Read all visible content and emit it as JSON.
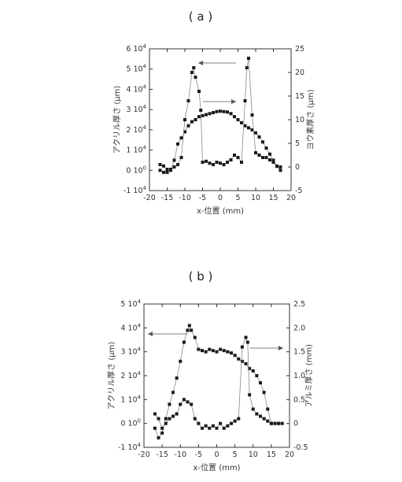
{
  "chart_data": [
    {
      "type": "scatter",
      "panel_label": "( a )",
      "xlabel": "x-位置 (mm)",
      "ylabel_left": "アクリル厚さ (μm)",
      "ylabel_right": "ヨウ素厚さ (μm)",
      "xlim": [
        -20,
        20
      ],
      "ylim_left": [
        -10000,
        60000
      ],
      "ylim_right": [
        -5,
        25
      ],
      "x_ticks": [
        "-20",
        "-15",
        "-10",
        "-5",
        "0",
        "5",
        "10",
        "15",
        "20"
      ],
      "y_left_ticks": [
        {
          "mant": "-1",
          "exp": "4"
        },
        {
          "mant": "0",
          "exp": "0"
        },
        {
          "mant": "1",
          "exp": "4"
        },
        {
          "mant": "2",
          "exp": "4"
        },
        {
          "mant": "3",
          "exp": "4"
        },
        {
          "mant": "4",
          "exp": "4"
        },
        {
          "mant": "5",
          "exp": "4"
        },
        {
          "mant": "6",
          "exp": "4"
        }
      ],
      "y_right_ticks": [
        "-5",
        "0",
        "5",
        "10",
        "15",
        "20",
        "25"
      ],
      "series": [
        {
          "axis": "left",
          "points": [
            [
              -17,
              0
            ],
            [
              -16,
              -1000
            ],
            [
              -15,
              -1000
            ],
            [
              -14,
              0
            ],
            [
              -13,
              5000
            ],
            [
              -12,
              13000
            ],
            [
              -11,
              16000
            ],
            [
              -10,
              19000
            ],
            [
              -9,
              22000
            ],
            [
              -8,
              24000
            ],
            [
              -7,
              25000
            ],
            [
              -6,
              26500
            ],
            [
              -5,
              27000
            ],
            [
              -4,
              27500
            ],
            [
              -3,
              28000
            ],
            [
              -2,
              28500
            ],
            [
              -1,
              29000
            ],
            [
              0,
              29200
            ],
            [
              1,
              29000
            ],
            [
              2,
              28800
            ],
            [
              3,
              28000
            ],
            [
              4,
              26500
            ],
            [
              5,
              25000
            ],
            [
              6,
              23500
            ],
            [
              7,
              22000
            ],
            [
              8,
              21000
            ],
            [
              9,
              20000
            ],
            [
              10,
              18500
            ],
            [
              11,
              16500
            ],
            [
              12,
              14000
            ],
            [
              13,
              11000
            ],
            [
              14,
              8000
            ],
            [
              15,
              5000
            ],
            [
              16,
              2000
            ],
            [
              17,
              0
            ]
          ]
        },
        {
          "axis": "right",
          "points": [
            [
              -17,
              0.5
            ],
            [
              -16,
              0.2
            ],
            [
              -15,
              -0.5
            ],
            [
              -14,
              -0.5
            ],
            [
              -13,
              0
            ],
            [
              -12,
              0.5
            ],
            [
              -11,
              2
            ],
            [
              -10,
              10
            ],
            [
              -9,
              14
            ],
            [
              -8,
              20
            ],
            [
              -7.5,
              21
            ],
            [
              -7,
              19
            ],
            [
              -6,
              16
            ],
            [
              -5.5,
              12
            ],
            [
              -5,
              1
            ],
            [
              -4,
              1.2
            ],
            [
              -3,
              0.8
            ],
            [
              -2,
              0.5
            ],
            [
              -1,
              1
            ],
            [
              0,
              0.8
            ],
            [
              1,
              0.5
            ],
            [
              2,
              1
            ],
            [
              3,
              1.5
            ],
            [
              4,
              2.5
            ],
            [
              5,
              2
            ],
            [
              6,
              1
            ],
            [
              7,
              14
            ],
            [
              7.5,
              21
            ],
            [
              8,
              23
            ],
            [
              9,
              11
            ],
            [
              10,
              3
            ],
            [
              11,
              2.5
            ],
            [
              12,
              2
            ],
            [
              13,
              2
            ],
            [
              14,
              1.5
            ],
            [
              15,
              1
            ],
            [
              16,
              0.2
            ],
            [
              17,
              0
            ]
          ]
        }
      ],
      "arrows": [
        "left",
        "right"
      ]
    },
    {
      "type": "scatter",
      "panel_label": "( b )",
      "xlabel": "x-位置 (mm)",
      "ylabel_left": "アクリル厚さ (μm)",
      "ylabel_right": "アルミ厚さ (mm)",
      "xlim": [
        -20,
        20
      ],
      "ylim_left": [
        -10000,
        50000
      ],
      "ylim_right": [
        -0.5,
        2.5
      ],
      "x_ticks": [
        "-20",
        "-15",
        "-10",
        "-5",
        "0",
        "5",
        "10",
        "15",
        "20"
      ],
      "y_left_ticks": [
        {
          "mant": "-1",
          "exp": "4"
        },
        {
          "mant": "0",
          "exp": "0"
        },
        {
          "mant": "1",
          "exp": "4"
        },
        {
          "mant": "2",
          "exp": "4"
        },
        {
          "mant": "3",
          "exp": "4"
        },
        {
          "mant": "4",
          "exp": "4"
        },
        {
          "mant": "5",
          "exp": "4"
        }
      ],
      "y_right_ticks": [
        "-0.5",
        "0",
        "0.5",
        "1.0",
        "1.5",
        "2.0",
        "2.5"
      ],
      "series": [
        {
          "axis": "left",
          "points": [
            [
              -17,
              -2000
            ],
            [
              -16,
              -6000
            ],
            [
              -15,
              -4000
            ],
            [
              -14,
              2000
            ],
            [
              -13,
              8000
            ],
            [
              -12,
              13000
            ],
            [
              -11,
              19000
            ],
            [
              -10,
              26000
            ],
            [
              -9,
              34000
            ],
            [
              -8,
              39000
            ],
            [
              -7.5,
              41000
            ],
            [
              -7,
              39000
            ],
            [
              -6,
              36000
            ],
            [
              -5,
              31000
            ],
            [
              -4,
              30500
            ],
            [
              -3,
              30000
            ],
            [
              -2,
              31000
            ],
            [
              -1,
              30500
            ],
            [
              0,
              30000
            ],
            [
              1,
              31000
            ],
            [
              2,
              30500
            ],
            [
              3,
              30000
            ],
            [
              4,
              29500
            ],
            [
              5,
              28500
            ],
            [
              6,
              27000
            ],
            [
              7,
              26000
            ],
            [
              8,
              25000
            ],
            [
              9,
              23000
            ],
            [
              10,
              22000
            ],
            [
              11,
              20000
            ],
            [
              12,
              17000
            ],
            [
              13,
              13000
            ],
            [
              14,
              6000
            ],
            [
              15,
              0
            ],
            [
              16,
              0
            ],
            [
              17,
              0
            ],
            [
              18,
              0
            ]
          ]
        },
        {
          "axis": "right",
          "points": [
            [
              -17,
              0.2
            ],
            [
              -16,
              0.1
            ],
            [
              -15,
              -0.1
            ],
            [
              -14,
              0
            ],
            [
              -13,
              0.1
            ],
            [
              -12,
              0.15
            ],
            [
              -11,
              0.2
            ],
            [
              -10,
              0.4
            ],
            [
              -9,
              0.5
            ],
            [
              -8,
              0.45
            ],
            [
              -7,
              0.4
            ],
            [
              -6,
              0.1
            ],
            [
              -5,
              0
            ],
            [
              -4,
              -0.1
            ],
            [
              -3,
              -0.05
            ],
            [
              -2,
              -0.1
            ],
            [
              -1,
              -0.05
            ],
            [
              0,
              -0.1
            ],
            [
              1,
              0
            ],
            [
              2,
              -0.1
            ],
            [
              3,
              -0.05
            ],
            [
              4,
              0
            ],
            [
              5,
              0.05
            ],
            [
              6,
              0.1
            ],
            [
              7,
              1.6
            ],
            [
              8,
              1.8
            ],
            [
              8.5,
              1.7
            ],
            [
              9,
              0.6
            ],
            [
              10,
              0.3
            ],
            [
              11,
              0.2
            ],
            [
              12,
              0.15
            ],
            [
              13,
              0.1
            ],
            [
              14,
              0.05
            ],
            [
              15,
              0
            ],
            [
              16,
              0
            ],
            [
              17,
              0
            ]
          ]
        }
      ],
      "arrows": [
        "left",
        "right"
      ]
    }
  ]
}
